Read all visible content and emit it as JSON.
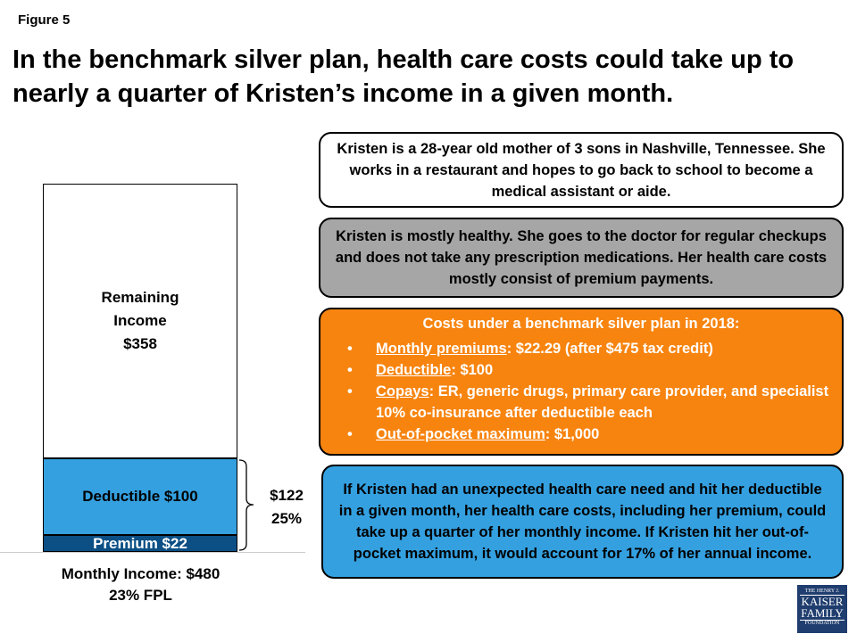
{
  "figure_label": "Figure 5",
  "title": "In the benchmark silver plan, health care costs could take up to nearly a quarter of Kristen’s income in a given month.",
  "chart_data": {
    "type": "bar",
    "stacked": true,
    "categories": [
      "Monthly Income: $480"
    ],
    "series": [
      {
        "name": "Premium",
        "label": "Premium $22",
        "values": [
          22
        ],
        "color": "#0b4f85"
      },
      {
        "name": "Deductible",
        "label": "Deductible $100",
        "values": [
          100
        ],
        "color": "#34a0e0"
      },
      {
        "name": "Remaining Income",
        "label": "Remaining Income $358",
        "values": [
          358
        ],
        "color": "#ffffff"
      }
    ],
    "ylim": [
      0,
      480
    ],
    "xlabel": "Monthly Income: $480",
    "xlabel2": "23% FPL",
    "bracket_label": [
      "$122",
      "25%"
    ],
    "grid": false
  },
  "labels": {
    "remaining": [
      "Remaining",
      "Income",
      "$358"
    ],
    "deductible": "Deductible $100",
    "premium": "Premium $22"
  },
  "boxes": {
    "profile": "Kristen is a 28-year old mother of 3 sons in Nashville, Tennessee. She works in a restaurant and hopes to go back to school to become a medical assistant or aide.",
    "health": "Kristen is mostly healthy. She goes to the doctor for regular checkups and does not take any prescription medications. Her health care costs mostly consist of premium payments.",
    "costs": {
      "heading": "Costs under a benchmark silver plan in 2018:",
      "items": [
        {
          "term": "Monthly premiums",
          "text": ": $22.29 (after $475 tax credit)"
        },
        {
          "term": "Deductible",
          "text": ": $100"
        },
        {
          "term": "Copays",
          "text": ": ER, generic drugs, primary care provider, and specialist 10% co-insurance after deductible each"
        },
        {
          "term": "Out-of-pocket maximum",
          "text": ": $1,000"
        }
      ]
    },
    "summary": "If Kristen had an unexpected health care need and hit her deductible in a given month, her health care costs, including her premium, could take up a quarter of her monthly income. If Kristen hit her out-of-pocket maximum, it would account for 17% of her annual income."
  },
  "logo": [
    "THE HENRY J.",
    "KAISER",
    "FAMILY",
    "FOUNDATION"
  ]
}
